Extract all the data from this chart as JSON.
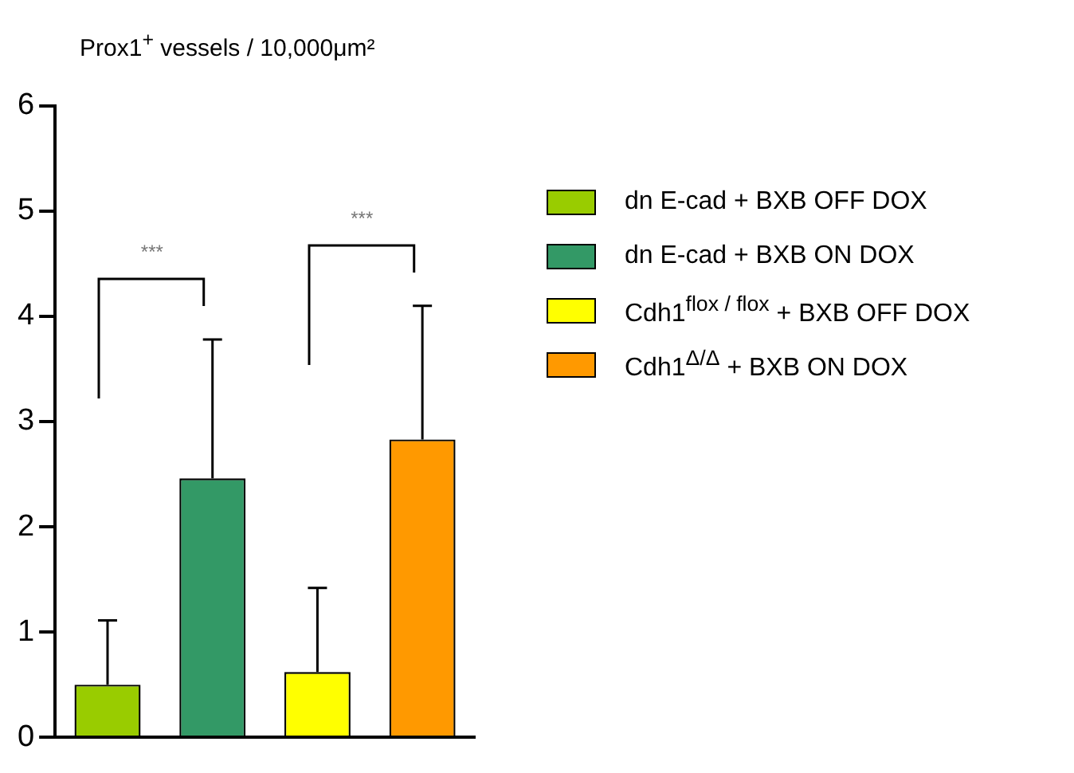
{
  "chart_data": {
    "type": "bar",
    "title": "Prox1$^{+}$ vessels / 10,000μm²",
    "categories": [
      null,
      null,
      null,
      null
    ],
    "series": [
      {
        "name": "dn E-cad + BXB OFF DOX",
        "color": "#99cc00",
        "values": [
          0.5,
          null,
          null,
          null
        ],
        "errors": [
          [
            0.5,
            1.11
          ],
          null,
          null,
          null
        ]
      },
      {
        "name": "dn E-cad + BXB ON DOX",
        "color": "#339966",
        "values": [
          null,
          2.46,
          null,
          null
        ],
        "errors": [
          null,
          [
            2.46,
            3.78
          ],
          null,
          null
        ]
      },
      {
        "name": "Cdh1$^{flox / flox}$ + BXB OFF DOX",
        "color": "#ffff00",
        "values": [
          null,
          null,
          0.62,
          null
        ],
        "errors": [
          null,
          null,
          [
            0.62,
            1.42
          ],
          null
        ]
      },
      {
        "name": "Cdh1$^{Δ/Δ}$ + BXB ON DOX",
        "color": "#ff9900",
        "values": [
          null,
          null,
          null,
          2.83
        ],
        "errors": [
          null,
          null,
          null,
          [
            2.83,
            4.1
          ]
        ]
      }
    ],
    "annotations": [
      "***",
      "***"
    ],
    "ylim": [
      0,
      6
    ],
    "yticks": [
      0,
      1,
      2,
      3,
      4,
      5,
      6
    ],
    "grid": false,
    "legend": "right",
    "tick_labels": "y"
  }
}
